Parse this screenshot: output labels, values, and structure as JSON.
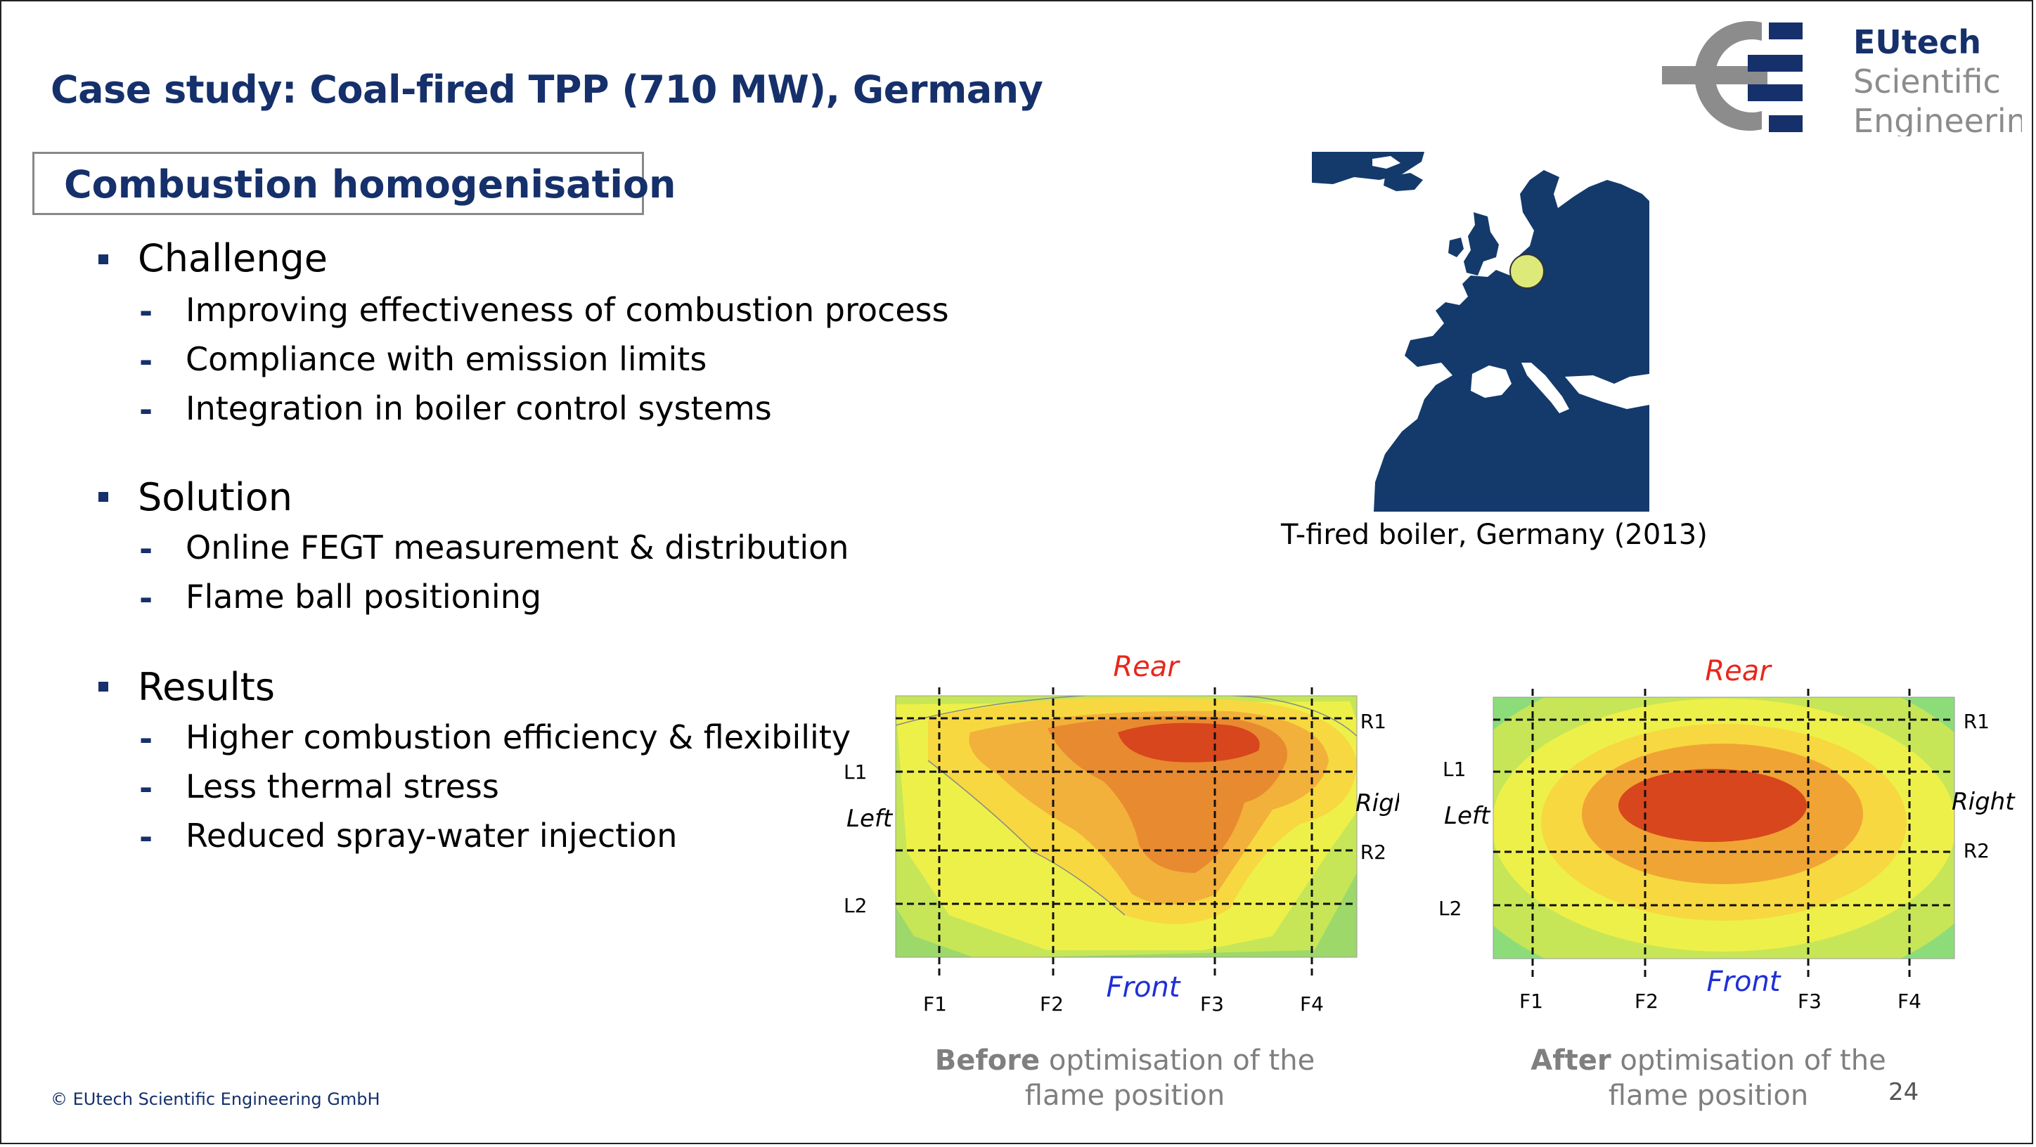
{
  "slide": {
    "title": "Case study: Coal-fired TPP (710 MW), Germany",
    "section_heading": "Combustion homogenisation",
    "sections": [
      {
        "label": "Challenge",
        "items": [
          "Improving effectiveness of combustion process",
          "Compliance with emission limits",
          "Integration in boiler control systems"
        ]
      },
      {
        "label": "Solution",
        "items": [
          "Online FEGT measurement & distribution",
          "Flame ball positioning"
        ]
      },
      {
        "label": "Results",
        "items": [
          "Higher combustion efficiency & flexibility",
          "Less thermal stress",
          "Reduced spray-water injection"
        ]
      }
    ],
    "map_caption": "T-fired boiler, Germany (2013)",
    "logo": {
      "line1": "EUtech",
      "line2": "Scientific",
      "line3": "Engineering"
    },
    "footer": "©  EUtech Scientific Engineering GmbH",
    "page_number": "24"
  },
  "diagrams": {
    "labels": {
      "rear": "Rear",
      "front": "Front",
      "left": "Left",
      "right": "Right",
      "r1": "R1",
      "r2": "R2",
      "l1": "L1",
      "l2": "L2",
      "f1": "F1",
      "f2": "F2",
      "f3": "F3",
      "f4": "F4"
    },
    "before_caption_bold": "Before",
    "before_caption_rest": " optimisation of the",
    "before_caption_line2": "flame position",
    "after_caption_bold": "After",
    "after_caption_rest": " optimisation of the",
    "after_caption_line2": "flame position"
  },
  "colors": {
    "title_blue": "#15306b",
    "map_blue": "#143a6b",
    "marker": "#ddea7a",
    "rear_label": "#e8271b",
    "front_label": "#1f2fd6",
    "logo_gray": "#8c8c8c"
  }
}
